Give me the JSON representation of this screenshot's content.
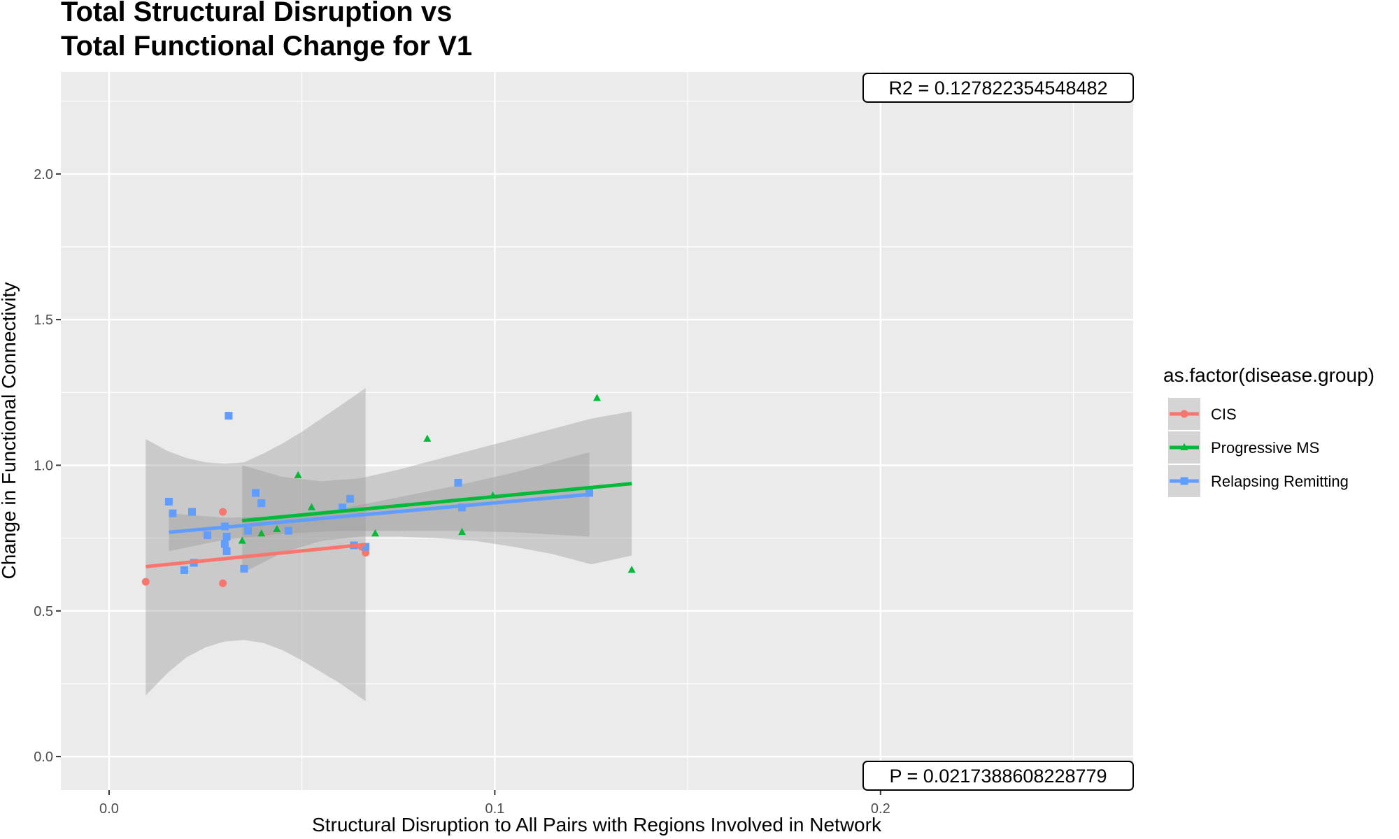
{
  "chart_data": {
    "type": "scatter",
    "title_lines": [
      "Total Structural Disruption vs",
      "Total Functional Change for V1"
    ],
    "xlabel": "Structural Disruption to All Pairs with Regions Involved in Network",
    "ylabel": "Change in Functional Connectivity",
    "xlim": [
      -0.0125,
      0.2655
    ],
    "ylim": [
      -0.115,
      2.35
    ],
    "x_ticks": [
      0.0,
      0.1,
      0.2
    ],
    "x_tick_labels": [
      "0.0",
      "0.1",
      "0.2"
    ],
    "y_ticks": [
      0.0,
      0.5,
      1.0,
      1.5,
      2.0
    ],
    "y_tick_labels": [
      "0.0",
      "0.5",
      "1.0",
      "1.5",
      "2.0"
    ],
    "grid": true,
    "panel_background": "#ebebeb",
    "legend": {
      "title": "as.factor(disease.group)",
      "position": "right",
      "entries": [
        "CIS",
        "Progressive MS",
        "Relapsing Remitting"
      ]
    },
    "annotations": [
      {
        "text": "R2 =  0.127822354548482",
        "position": "top-right"
      },
      {
        "text": "P =  0.0217388608228779",
        "position": "bottom-right"
      }
    ],
    "series": [
      {
        "name": "CIS",
        "color": "#f8766d",
        "marker": "circle",
        "points": [
          [
            0.0095,
            0.6
          ],
          [
            0.0295,
            0.84
          ],
          [
            0.0295,
            0.595
          ],
          [
            0.0655,
            0.72
          ],
          [
            0.0665,
            0.7
          ]
        ],
        "fit": {
          "x": [
            0.0095,
            0.0665
          ],
          "y": [
            0.652,
            0.728
          ]
        },
        "band": {
          "x": [
            0.0095,
            0.015,
            0.02,
            0.025,
            0.03,
            0.035,
            0.04,
            0.045,
            0.05,
            0.055,
            0.06,
            0.0665
          ],
          "lo": [
            0.21,
            0.285,
            0.34,
            0.375,
            0.395,
            0.4,
            0.39,
            0.365,
            0.33,
            0.29,
            0.25,
            0.19
          ],
          "hi": [
            1.09,
            1.05,
            1.025,
            1.01,
            1.005,
            1.01,
            1.04,
            1.075,
            1.115,
            1.16,
            1.205,
            1.265
          ]
        }
      },
      {
        "name": "Progressive MS",
        "color": "#00ba38",
        "marker": "triangle",
        "points": [
          [
            0.0345,
            0.74
          ],
          [
            0.0395,
            0.765
          ],
          [
            0.0435,
            0.78
          ],
          [
            0.049,
            0.965
          ],
          [
            0.0525,
            0.855
          ],
          [
            0.069,
            0.765
          ],
          [
            0.0825,
            1.09
          ],
          [
            0.0915,
            0.77
          ],
          [
            0.0995,
            0.895
          ],
          [
            0.1265,
            1.23
          ],
          [
            0.1355,
            0.64
          ]
        ],
        "fit": {
          "x": [
            0.0345,
            0.1355
          ],
          "y": [
            0.81,
            0.937
          ]
        },
        "band": {
          "x": [
            0.0345,
            0.045,
            0.055,
            0.065,
            0.075,
            0.085,
            0.095,
            0.105,
            0.115,
            0.125,
            0.1355
          ],
          "lo": [
            0.63,
            0.7,
            0.74,
            0.755,
            0.755,
            0.75,
            0.74,
            0.72,
            0.695,
            0.66,
            0.69
          ],
          "hi": [
            1.0,
            0.96,
            0.945,
            0.955,
            0.985,
            1.02,
            1.055,
            1.09,
            1.125,
            1.16,
            1.185
          ]
        }
      },
      {
        "name": "Relapsing Remitting",
        "color": "#619cff",
        "marker": "square",
        "points": [
          [
            0.0155,
            0.875
          ],
          [
            0.0165,
            0.835
          ],
          [
            0.0195,
            0.64
          ],
          [
            0.0215,
            0.84
          ],
          [
            0.022,
            0.665
          ],
          [
            0.0255,
            0.76
          ],
          [
            0.03,
            0.79
          ],
          [
            0.03,
            0.73
          ],
          [
            0.0305,
            0.705
          ],
          [
            0.0305,
            0.755
          ],
          [
            0.031,
            1.17
          ],
          [
            0.035,
            0.645
          ],
          [
            0.036,
            0.775
          ],
          [
            0.038,
            0.905
          ],
          [
            0.0395,
            0.87
          ],
          [
            0.0465,
            0.775
          ],
          [
            0.0605,
            0.855
          ],
          [
            0.0625,
            0.885
          ],
          [
            0.0635,
            0.725
          ],
          [
            0.0665,
            0.72
          ],
          [
            0.0905,
            0.94
          ],
          [
            0.0915,
            0.855
          ],
          [
            0.1245,
            0.905
          ]
        ],
        "fit": {
          "x": [
            0.0155,
            0.1245
          ],
          "y": [
            0.77,
            0.9
          ]
        },
        "band": {
          "x": [
            0.0155,
            0.03,
            0.045,
            0.06,
            0.075,
            0.09,
            0.105,
            0.1245
          ],
          "lo": [
            0.705,
            0.745,
            0.765,
            0.775,
            0.775,
            0.775,
            0.77,
            0.755
          ],
          "hi": [
            0.835,
            0.82,
            0.825,
            0.85,
            0.89,
            0.93,
            0.975,
            1.045
          ]
        }
      }
    ]
  }
}
